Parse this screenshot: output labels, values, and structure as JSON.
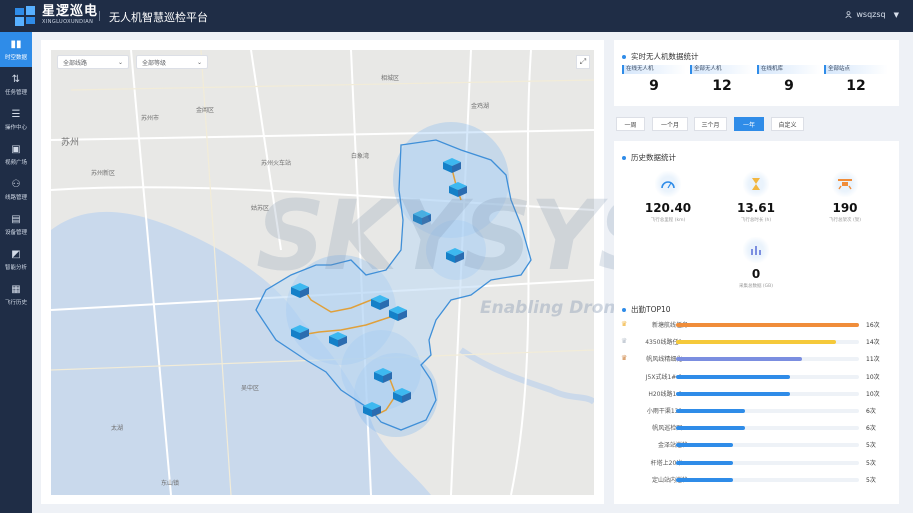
{
  "header": {
    "brand_main": "星逻巡电",
    "brand_sub": "XINGLUOXUNDIAN",
    "app_title": "无人机智慧巡检平台",
    "username": "wsqzsq"
  },
  "sidebar": {
    "items": [
      {
        "label": "时空数据",
        "icon": "bar-chart-icon",
        "glyph": "▮▮",
        "active": true
      },
      {
        "label": "任务管理",
        "icon": "task-icon",
        "glyph": "⇅",
        "active": false
      },
      {
        "label": "操作中心",
        "icon": "control-icon",
        "glyph": "☰",
        "active": false
      },
      {
        "label": "视频广场",
        "icon": "video-icon",
        "glyph": "▣",
        "active": false
      },
      {
        "label": "线路管理",
        "icon": "route-icon",
        "glyph": "⚇",
        "active": false
      },
      {
        "label": "设备管理",
        "icon": "device-icon",
        "glyph": "▤",
        "active": false
      },
      {
        "label": "智能分析",
        "icon": "analysis-icon",
        "glyph": "◩",
        "active": false
      },
      {
        "label": "飞行历史",
        "icon": "history-icon",
        "glyph": "▦",
        "active": false
      }
    ]
  },
  "map": {
    "line_select": "全部线路",
    "level_select": "全部等级",
    "watermark": "SKYSYS",
    "watermark_sub": "Enabling Drones",
    "place_labels": [
      {
        "text": "苏州",
        "size": "large"
      },
      {
        "text": "苏州市"
      },
      {
        "text": "苏州新区"
      },
      {
        "text": "金阊区"
      },
      {
        "text": "苏州火车站"
      },
      {
        "text": "白象湾"
      },
      {
        "text": "金鸡湖"
      },
      {
        "text": "相城区"
      },
      {
        "text": "姑苏区"
      },
      {
        "text": "吴中区"
      },
      {
        "text": "太湖"
      },
      {
        "text": "东山镇"
      }
    ]
  },
  "realtime": {
    "title": "实时无人机数据统计",
    "stats": [
      {
        "label": "在线无人机",
        "value": "9"
      },
      {
        "label": "全部无人机",
        "value": "12"
      },
      {
        "label": "在线机库",
        "value": "9"
      },
      {
        "label": "全部站点",
        "value": "12"
      }
    ]
  },
  "period_tabs": [
    {
      "label": "一周",
      "active": false
    },
    {
      "label": "一个月",
      "active": false
    },
    {
      "label": "三个月",
      "active": false
    },
    {
      "label": "一年",
      "active": true
    },
    {
      "label": "自定义",
      "active": false
    }
  ],
  "history": {
    "title": "历史数据统计",
    "stats": [
      {
        "value": "120.40",
        "label": "飞行总里程 (km)",
        "icon": "speedometer-icon"
      },
      {
        "value": "13.61",
        "label": "飞行总时长 (h)",
        "icon": "hourglass-icon"
      },
      {
        "value": "190",
        "label": "飞行总架次 (架)",
        "icon": "drone-icon"
      },
      {
        "value": "0",
        "label": "采集总数据 (GB)",
        "icon": "database-icon"
      }
    ]
  },
  "top10": {
    "title": "出勤TOP10",
    "max": 16,
    "rows": [
      {
        "name": "新塘航线任务",
        "count": 16,
        "count_text": "16次",
        "color": "#f08d3a",
        "medal": "gold"
      },
      {
        "name": "4350线路任1...",
        "count": 14,
        "count_text": "14次",
        "color": "#f5c93a",
        "medal": "silver"
      },
      {
        "name": "帆风线精细化...",
        "count": 11,
        "count_text": "11次",
        "color": "#7b8ee0",
        "medal": "bronze"
      },
      {
        "name": "J5X式线1#-1...",
        "count": 10,
        "count_text": "10次",
        "color": "#2f8ce8",
        "medal": ""
      },
      {
        "name": "H20线路1-1...",
        "count": 10,
        "count_text": "10次",
        "color": "#2f8ce8",
        "medal": ""
      },
      {
        "name": "小雨干渠131...",
        "count": 6,
        "count_text": "6次",
        "color": "#2f8ce8",
        "medal": ""
      },
      {
        "name": "帆风巡检图...",
        "count": 6,
        "count_text": "6次",
        "color": "#2f8ce8",
        "medal": ""
      },
      {
        "name": "金泽站巡检",
        "count": 5,
        "count_text": "5次",
        "color": "#2f8ce8",
        "medal": ""
      },
      {
        "name": "杆塔上20米...",
        "count": 5,
        "count_text": "5次",
        "color": "#2f8ce8",
        "medal": ""
      },
      {
        "name": "定山站内巡检",
        "count": 5,
        "count_text": "5次",
        "color": "#2f8ce8",
        "medal": ""
      }
    ]
  },
  "colors": {
    "topbar": "#1f2d46",
    "accent": "#2f8ce8",
    "region_fill": "#bcd8f4",
    "region_stroke": "#3f8fd8",
    "route": "#e0a03a"
  }
}
